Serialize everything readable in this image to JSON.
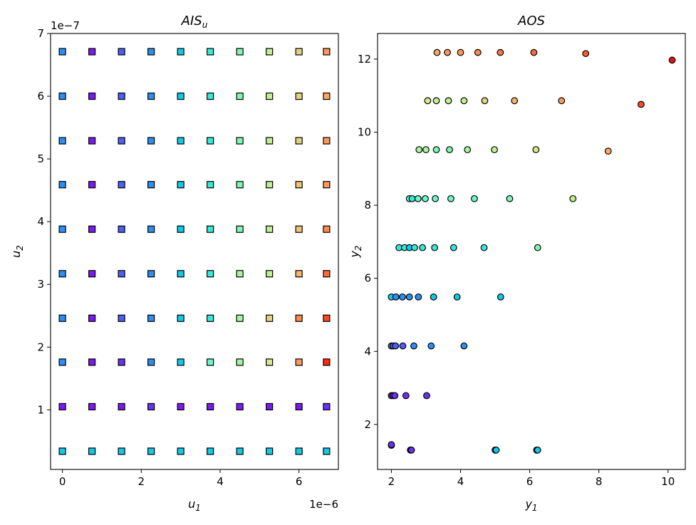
{
  "chart_data": [
    {
      "type": "scatter",
      "title": "AIS",
      "title_subscript": "u",
      "xlabel": "u",
      "xlabel_subscript": "1",
      "ylabel": "u",
      "ylabel_subscript": "2",
      "x_offset_text": "1e−6",
      "y_offset_text": "1e−7",
      "xlim": [
        -0.3,
        7.0
      ],
      "ylim": [
        0.05,
        7.0
      ],
      "x_ticks": [
        0,
        2,
        4,
        6
      ],
      "x_tick_labels": [
        "0",
        "2",
        "4",
        "6"
      ],
      "y_ticks": [
        1,
        2,
        3,
        4,
        5,
        6,
        7
      ],
      "y_tick_labels": [
        "1",
        "2",
        "3",
        "4",
        "5",
        "6",
        "7"
      ],
      "marker": "square",
      "colormap": "rainbow",
      "x_grid": [
        0.0,
        0.75,
        1.5,
        2.25,
        3.0,
        3.75,
        4.5,
        5.25,
        6.0,
        6.7
      ],
      "y_grid": [
        0.34,
        1.05,
        1.76,
        2.46,
        3.17,
        3.88,
        4.59,
        5.29,
        6.0,
        6.71
      ],
      "colors": [
        [
          "#12c8e5",
          "#12c8e5",
          "#12c8e5",
          "#12c8e5",
          "#12c8e5",
          "#12c8e5",
          "#12c8e5",
          "#12c8e5",
          "#12c8e5",
          "#12c8e5"
        ],
        [
          "#7a1bf2",
          "#7a1bf2",
          "#7a1bf2",
          "#6a30f6",
          "#7a1bf2",
          "#7a1bf2",
          "#7a1bf2",
          "#7a1bf2",
          "#7a1bf2",
          "#6a30f6"
        ],
        [
          "#2c8ff0",
          "#7a1bf2",
          "#6a30f6",
          "#2c8ff0",
          "#12c8e5",
          "#6ef7c8",
          "#a6f5a0",
          "#d8e98a",
          "#ff9a5a",
          "#ff2a10"
        ],
        [
          "#2c8ff0",
          "#7a1bf2",
          "#4c60f6",
          "#2c8ff0",
          "#12c8e5",
          "#3ae8d8",
          "#a6f5a0",
          "#e3d37e",
          "#ff8a4a",
          "#ff4a24"
        ],
        [
          "#2c8ff0",
          "#7a1bf2",
          "#4c60f6",
          "#2c8ff0",
          "#12c8e5",
          "#3ae8d8",
          "#a6f5a0",
          "#bff28e",
          "#f8b66a",
          "#ff6a3a"
        ],
        [
          "#2c8ff0",
          "#7a1bf2",
          "#4c60f6",
          "#2c8ff0",
          "#12c8e5",
          "#3ae8d8",
          "#7cf7b4",
          "#bff28e",
          "#f1c474",
          "#ff8a4a"
        ],
        [
          "#2c8ff0",
          "#7a1bf2",
          "#4c60f6",
          "#2c8ff0",
          "#12c8e5",
          "#3ae8d8",
          "#7cf7b4",
          "#bff28e",
          "#f1c474",
          "#ff9a5a"
        ],
        [
          "#2c8ff0",
          "#7a1bf2",
          "#4c60f6",
          "#2c8ff0",
          "#12c8e5",
          "#3ae8d8",
          "#7cf7b4",
          "#bff28e",
          "#e3d37e",
          "#ff9a5a"
        ],
        [
          "#2c8ff0",
          "#7a1bf2",
          "#4c60f6",
          "#2c8ff0",
          "#12c8e5",
          "#3ae8d8",
          "#7cf7b4",
          "#bff28e",
          "#e3d37e",
          "#ffa864"
        ],
        [
          "#2c8ff0",
          "#7a1bf2",
          "#4c60f6",
          "#2c8ff0",
          "#12c8e5",
          "#3ae8d8",
          "#7cf7b4",
          "#bff28e",
          "#e3d37e",
          "#ff9a5a"
        ]
      ]
    },
    {
      "type": "scatter",
      "title": "AOS",
      "xlabel": "y",
      "xlabel_subscript": "1",
      "ylabel": "y",
      "ylabel_subscript": "2",
      "xlim": [
        1.6,
        10.5
      ],
      "ylim": [
        0.77,
        12.7
      ],
      "x_ticks": [
        2,
        4,
        6,
        8,
        10
      ],
      "x_tick_labels": [
        "2",
        "4",
        "6",
        "8",
        "10"
      ],
      "y_ticks": [
        2,
        4,
        6,
        8,
        10,
        12
      ],
      "y_tick_labels": [
        "2",
        "4",
        "6",
        "8",
        "10",
        "12"
      ],
      "marker": "circle",
      "colormap": "rainbow",
      "points": [
        {
          "x": 2.0,
          "y": 1.43,
          "c": "#7a1bf2"
        },
        {
          "x": 2.0,
          "y": 1.45,
          "c": "#6a30f6"
        },
        {
          "x": 2.55,
          "y": 1.3,
          "c": "#7a1bf2"
        },
        {
          "x": 2.58,
          "y": 1.3,
          "c": "#6a30f6"
        },
        {
          "x": 5.0,
          "y": 1.3,
          "c": "#2c8ff0"
        },
        {
          "x": 5.03,
          "y": 1.3,
          "c": "#12c8e5"
        },
        {
          "x": 6.2,
          "y": 1.3,
          "c": "#12c8e5"
        },
        {
          "x": 6.23,
          "y": 1.3,
          "c": "#12c8e5"
        },
        {
          "x": 2.0,
          "y": 2.79,
          "c": "#7a1bf2"
        },
        {
          "x": 2.05,
          "y": 2.79,
          "c": "#6a30f6"
        },
        {
          "x": 2.1,
          "y": 2.79,
          "c": "#6a30f6"
        },
        {
          "x": 2.42,
          "y": 2.79,
          "c": "#6a30f6"
        },
        {
          "x": 3.02,
          "y": 2.79,
          "c": "#6a30f6"
        },
        {
          "x": 2.0,
          "y": 4.15,
          "c": "#2c8ff0"
        },
        {
          "x": 2.05,
          "y": 4.15,
          "c": "#4c60f6"
        },
        {
          "x": 2.12,
          "y": 4.15,
          "c": "#4c60f6"
        },
        {
          "x": 2.33,
          "y": 4.15,
          "c": "#4c60f6"
        },
        {
          "x": 2.65,
          "y": 4.15,
          "c": "#2c8ff0"
        },
        {
          "x": 3.15,
          "y": 4.15,
          "c": "#2c8ff0"
        },
        {
          "x": 4.1,
          "y": 4.15,
          "c": "#2c8ff0"
        },
        {
          "x": 2.0,
          "y": 5.49,
          "c": "#12c8e5"
        },
        {
          "x": 2.13,
          "y": 5.49,
          "c": "#2c8ff0"
        },
        {
          "x": 2.32,
          "y": 5.49,
          "c": "#2c8ff0"
        },
        {
          "x": 2.52,
          "y": 5.49,
          "c": "#2c8ff0"
        },
        {
          "x": 2.78,
          "y": 5.49,
          "c": "#2c8ff0"
        },
        {
          "x": 3.22,
          "y": 5.49,
          "c": "#12c8e5"
        },
        {
          "x": 3.9,
          "y": 5.49,
          "c": "#12c8e5"
        },
        {
          "x": 5.16,
          "y": 5.49,
          "c": "#12c8e5"
        },
        {
          "x": 2.22,
          "y": 6.84,
          "c": "#3ae8d8"
        },
        {
          "x": 2.38,
          "y": 6.84,
          "c": "#3ae8d8"
        },
        {
          "x": 2.52,
          "y": 6.84,
          "c": "#12c8e5"
        },
        {
          "x": 2.67,
          "y": 6.84,
          "c": "#3ae8d8"
        },
        {
          "x": 2.9,
          "y": 6.84,
          "c": "#3ae8d8"
        },
        {
          "x": 3.25,
          "y": 6.84,
          "c": "#3ae8d8"
        },
        {
          "x": 3.8,
          "y": 6.84,
          "c": "#3ae8d8"
        },
        {
          "x": 4.68,
          "y": 6.84,
          "c": "#3ae8d8"
        },
        {
          "x": 6.23,
          "y": 6.84,
          "c": "#7cf7b4"
        },
        {
          "x": 2.52,
          "y": 8.18,
          "c": "#6ef7c8"
        },
        {
          "x": 2.6,
          "y": 8.18,
          "c": "#3ae8d8"
        },
        {
          "x": 2.77,
          "y": 8.18,
          "c": "#6ef7c8"
        },
        {
          "x": 2.98,
          "y": 8.18,
          "c": "#6ef7c8"
        },
        {
          "x": 3.27,
          "y": 8.18,
          "c": "#6ef7c8"
        },
        {
          "x": 3.72,
          "y": 8.18,
          "c": "#6ef7c8"
        },
        {
          "x": 4.4,
          "y": 8.18,
          "c": "#6ef7c8"
        },
        {
          "x": 5.42,
          "y": 8.18,
          "c": "#7cf7b4"
        },
        {
          "x": 7.25,
          "y": 8.18,
          "c": "#bff28e"
        },
        {
          "x": 2.8,
          "y": 9.52,
          "c": "#a6f5a0"
        },
        {
          "x": 3.0,
          "y": 9.52,
          "c": "#a6f5a0"
        },
        {
          "x": 3.3,
          "y": 9.52,
          "c": "#7cf7b4"
        },
        {
          "x": 3.68,
          "y": 9.52,
          "c": "#7cf7b4"
        },
        {
          "x": 4.2,
          "y": 9.52,
          "c": "#a6f5a0"
        },
        {
          "x": 4.98,
          "y": 9.52,
          "c": "#bff28e"
        },
        {
          "x": 6.18,
          "y": 9.52,
          "c": "#d8e98a"
        },
        {
          "x": 8.27,
          "y": 9.48,
          "c": "#ffa864"
        },
        {
          "x": 3.05,
          "y": 10.86,
          "c": "#d8e98a"
        },
        {
          "x": 3.3,
          "y": 10.86,
          "c": "#bff28e"
        },
        {
          "x": 3.65,
          "y": 10.86,
          "c": "#bff28e"
        },
        {
          "x": 4.1,
          "y": 10.86,
          "c": "#bff28e"
        },
        {
          "x": 4.7,
          "y": 10.86,
          "c": "#e3d37e"
        },
        {
          "x": 5.56,
          "y": 10.86,
          "c": "#f8b66a"
        },
        {
          "x": 6.92,
          "y": 10.86,
          "c": "#ff9a5a"
        },
        {
          "x": 9.22,
          "y": 10.76,
          "c": "#ff4a24"
        },
        {
          "x": 3.32,
          "y": 12.18,
          "c": "#ffa864"
        },
        {
          "x": 3.62,
          "y": 12.18,
          "c": "#ff9a5a"
        },
        {
          "x": 4.0,
          "y": 12.18,
          "c": "#ff9a5a"
        },
        {
          "x": 4.5,
          "y": 12.18,
          "c": "#ff8a4a"
        },
        {
          "x": 5.15,
          "y": 12.18,
          "c": "#ff7a46"
        },
        {
          "x": 6.12,
          "y": 12.18,
          "c": "#ff6a3a"
        },
        {
          "x": 7.62,
          "y": 12.15,
          "c": "#ff5a2e"
        },
        {
          "x": 10.12,
          "y": 11.97,
          "c": "#e81010"
        }
      ]
    }
  ]
}
